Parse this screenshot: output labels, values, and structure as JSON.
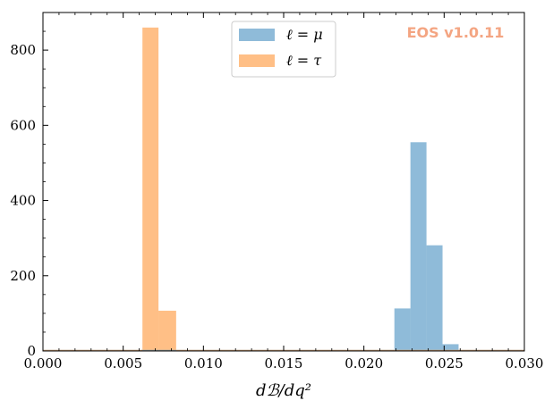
{
  "chart_data": {
    "type": "bar",
    "xlabel": "dℬ/dq²",
    "ylabel": "",
    "xlim": [
      0.0,
      0.03
    ],
    "ylim": [
      0,
      900
    ],
    "x_ticks": [
      "0.000",
      "0.005",
      "0.010",
      "0.015",
      "0.020",
      "0.025",
      "0.030"
    ],
    "y_ticks": [
      "0",
      "200",
      "400",
      "600",
      "800"
    ],
    "grid": false,
    "legend_placement": "upper center",
    "watermark": "EOS v1.0.11",
    "series": [
      {
        "name": "ℓ = μ",
        "color": "#1f77b4",
        "opacity": 0.5,
        "bins": [
          {
            "x0": 0.0,
            "x1": 0.0209,
            "count": 0
          },
          {
            "x0": 0.0209,
            "x1": 0.0219,
            "count": 3
          },
          {
            "x0": 0.0219,
            "x1": 0.0229,
            "count": 113
          },
          {
            "x0": 0.0229,
            "x1": 0.0239,
            "count": 555
          },
          {
            "x0": 0.0239,
            "x1": 0.0249,
            "count": 281
          },
          {
            "x0": 0.0249,
            "x1": 0.0259,
            "count": 18
          },
          {
            "x0": 0.0259,
            "x1": 0.03,
            "count": 0
          }
        ]
      },
      {
        "name": "ℓ = τ",
        "color": "#ff7f0e",
        "opacity": 0.5,
        "bins": [
          {
            "x0": 0.0,
            "x1": 0.0062,
            "count": 0
          },
          {
            "x0": 0.0062,
            "x1": 0.0072,
            "count": 860
          },
          {
            "x0": 0.0072,
            "x1": 0.0083,
            "count": 107
          },
          {
            "x0": 0.0083,
            "x1": 0.03,
            "count": 0
          }
        ]
      }
    ]
  }
}
